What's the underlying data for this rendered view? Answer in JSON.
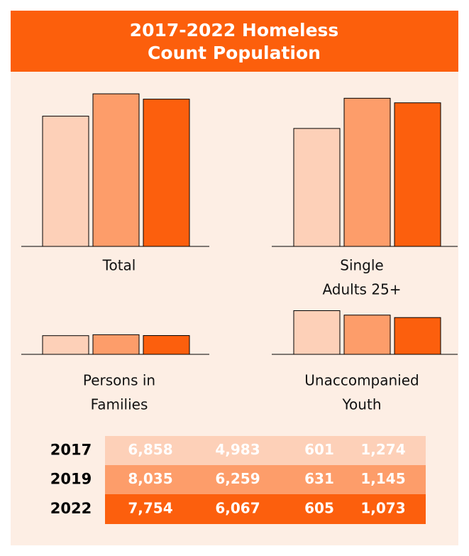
{
  "title": [
    "2017-2022 Homeless",
    "Count Population"
  ],
  "years": [
    "2017",
    "2019",
    "2022"
  ],
  "colors": [
    "#fdd0b8",
    "#fd9d6a",
    "#fc5f0d"
  ],
  "chart_data": [
    {
      "type": "bar",
      "label": [
        "Total"
      ],
      "values": [
        6858,
        8035,
        7754
      ],
      "value_labels": [
        "6,858",
        "8,035",
        "7,754"
      ],
      "ylim": [
        0,
        8600
      ]
    },
    {
      "type": "bar",
      "label": [
        "Single",
        "Adults 25+"
      ],
      "values": [
        4983,
        6259,
        6067
      ],
      "value_labels": [
        "4,983",
        "6,259",
        "6,067"
      ],
      "ylim": [
        0,
        6900
      ]
    },
    {
      "type": "bar",
      "label": [
        "Persons in",
        "Families"
      ],
      "values": [
        601,
        631,
        605
      ],
      "value_labels": [
        "601",
        "631",
        "605"
      ],
      "ylim": [
        0,
        1600
      ]
    },
    {
      "type": "bar",
      "label": [
        "Unaccompanied",
        "Youth"
      ],
      "values": [
        1274,
        1145,
        1073
      ],
      "value_labels": [
        "1,274",
        "1,145",
        "1,073"
      ],
      "ylim": [
        0,
        1450
      ]
    }
  ]
}
